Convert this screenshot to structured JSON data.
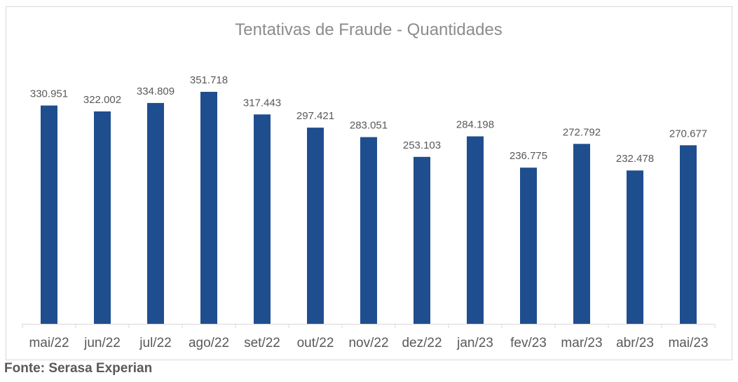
{
  "chart_data": {
    "type": "bar",
    "title": "Tentativas de Fraude - Quantidades",
    "categories": [
      "mai/22",
      "jun/22",
      "jul/22",
      "ago/22",
      "set/22",
      "out/22",
      "nov/22",
      "dez/22",
      "jan/23",
      "fev/23",
      "mar/23",
      "abr/23",
      "mai/23"
    ],
    "values": [
      330951,
      322002,
      334809,
      351718,
      317443,
      297421,
      283051,
      253103,
      284198,
      236775,
      272792,
      232478,
      270677
    ],
    "value_labels": [
      "330.951",
      "322.002",
      "334.809",
      "351.718",
      "317.443",
      "297.421",
      "283.051",
      "253.103",
      "284.198",
      "236.775",
      "272.792",
      "232.478",
      "270.677"
    ],
    "xlabel": "",
    "ylabel": "",
    "ylim": [
      0,
      351718
    ],
    "grid": false,
    "legend": "none",
    "colors": {
      "bar": "#1f4e8f",
      "text": "#595959",
      "title": "#8c8c8c",
      "axis": "#d9d9d9"
    }
  },
  "footer": {
    "source": "Fonte: Serasa Experian"
  }
}
